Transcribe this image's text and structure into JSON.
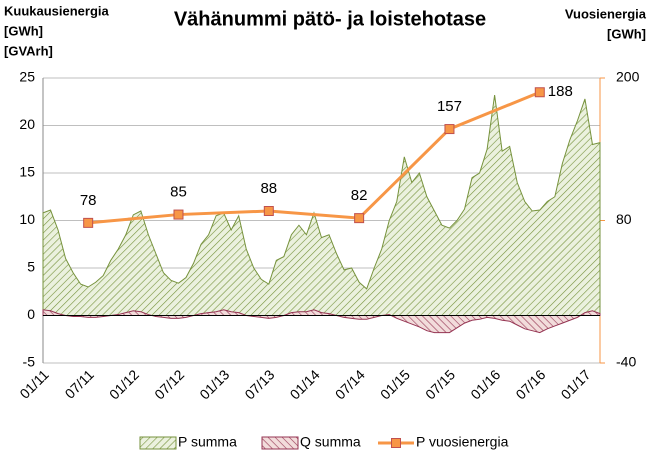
{
  "chart_data": {
    "type": "area-line",
    "title": "Vähänummi pätö- ja loistehotase",
    "y_label": [
      "Kuukausienergia",
      "[GWh]",
      "[GVArh]"
    ],
    "y2_label": [
      "Vuosienergia",
      "[GWh]"
    ],
    "categories": [
      "01/11",
      null,
      null,
      null,
      null,
      null,
      "07/11",
      null,
      null,
      null,
      null,
      null,
      "01/12",
      null,
      null,
      null,
      null,
      null,
      "07/12",
      null,
      null,
      null,
      null,
      null,
      "01/13",
      null,
      null,
      null,
      null,
      null,
      "07/13",
      null,
      null,
      null,
      null,
      null,
      "01/14",
      null,
      null,
      null,
      null,
      null,
      "07/14",
      null,
      null,
      null,
      null,
      null,
      "01/15",
      null,
      null,
      null,
      null,
      null,
      "07/15",
      null,
      null,
      null,
      null,
      null,
      "01/16",
      null,
      null,
      null,
      null,
      null,
      "07/16",
      null,
      null,
      null,
      null,
      null,
      "01/17",
      null,
      null
    ],
    "ylim": [
      -5,
      25
    ],
    "yticks": [
      -5,
      0,
      5,
      10,
      15,
      20,
      25
    ],
    "y2lim": [
      -40,
      200
    ],
    "y2ticks": [
      -40,
      80,
      200
    ],
    "grid": true,
    "series": [
      {
        "name": "P summa",
        "kind": "area",
        "color": "#76923c",
        "values": [
          10.8,
          11.1,
          9,
          6,
          4.5,
          3.3,
          3.0,
          3.5,
          4.2,
          5.8,
          7,
          8.5,
          10.6,
          11,
          8.5,
          6.5,
          4.5,
          3.7,
          3.4,
          4,
          5.5,
          7.5,
          8.5,
          10.5,
          10.8,
          9,
          10.5,
          7,
          5,
          3.8,
          3.3,
          5.8,
          6.2,
          8.5,
          9.5,
          8.5,
          10.8,
          8.2,
          8.5,
          6.5,
          4.8,
          5,
          3.5,
          2.8,
          5,
          7,
          10,
          12,
          16.7,
          14,
          15,
          12.5,
          11,
          9.5,
          9.2,
          10,
          11.2,
          14.5,
          15,
          17.5,
          23.2,
          17.3,
          17.8,
          14,
          12,
          11,
          11.1,
          12,
          12.5,
          16,
          18.5,
          20.5,
          22.8,
          18,
          18.2
        ]
      },
      {
        "name": "Q summa",
        "kind": "area",
        "color": "#953553",
        "values": [
          0.6,
          0.5,
          0.2,
          0,
          -0.1,
          -0.1,
          -0.2,
          -0.2,
          -0.1,
          0,
          0.1,
          0.3,
          0.5,
          0.4,
          0.1,
          -0.1,
          -0.2,
          -0.3,
          -0.3,
          -0.2,
          0,
          0.2,
          0.3,
          0.4,
          0.6,
          0.4,
          0.3,
          0,
          -0.1,
          -0.2,
          -0.3,
          -0.2,
          0,
          0.3,
          0.4,
          0.4,
          0.6,
          0.3,
          0.2,
          0,
          -0.2,
          -0.3,
          -0.4,
          -0.4,
          -0.2,
          0,
          0.1,
          -0.3,
          -0.6,
          -0.9,
          -1.2,
          -1.6,
          -1.8,
          -1.8,
          -1.8,
          -1.3,
          -0.8,
          -0.5,
          -0.4,
          -0.2,
          -0.3,
          -0.5,
          -0.6,
          -1,
          -1.4,
          -1.6,
          -1.8,
          -1.4,
          -1.1,
          -0.8,
          -0.5,
          -0.2,
          0.3,
          0.5,
          0.2
        ]
      },
      {
        "name": "P vuosienergia",
        "kind": "line",
        "axis": "y2",
        "color": "#f79646",
        "x": [
          "07/11",
          "07/12",
          "07/13",
          "07/14",
          "07/15",
          "07/16"
        ],
        "values": [
          78,
          85,
          88,
          82,
          157,
          188
        ]
      }
    ]
  }
}
